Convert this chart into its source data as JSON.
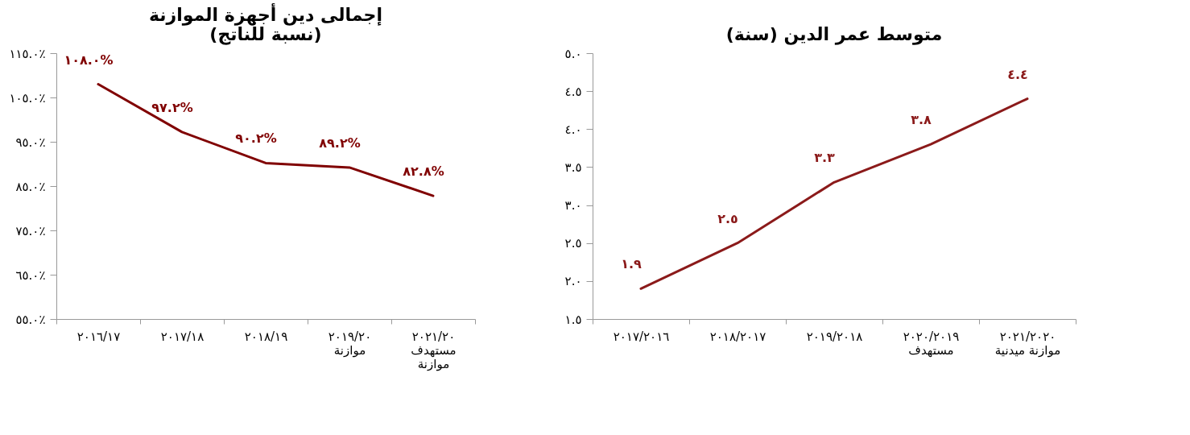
{
  "chart_data": [
    {
      "type": "line",
      "title": "إجمالى دين أجهزة الموازنة\n(نسبة للناتج)",
      "categories": [
        "٢٠١٦/١٧",
        "٢٠١٧/١٨",
        "٢٠١٨/١٩",
        "٢٠١٩/٢٠\nموازنة",
        "٢٠٢١/٢٠\nمستهدف\nموازنة"
      ],
      "series": [
        {
          "color": "#800000",
          "values": [
            108.0,
            97.2,
            90.2,
            89.2,
            82.8
          ],
          "value_labels": [
            "١٠٨.٠%",
            "٩٧.٢%",
            "٩٠.٢%",
            "٨٩.٢%",
            "٨٢.٨%"
          ]
        }
      ],
      "ylim": [
        55,
        115
      ],
      "yticks": [
        {
          "value": 55,
          "label": "٥٥.٠٪"
        },
        {
          "value": 65,
          "label": "٦٥.٠٪"
        },
        {
          "value": 75,
          "label": "٧٥.٠٪"
        },
        {
          "value": 85,
          "label": "٨٥.٠٪"
        },
        {
          "value": 95,
          "label": "٩٥.٠٪"
        },
        {
          "value": 105,
          "label": "١٠٥.٠٪"
        },
        {
          "value": 115,
          "label": "١١٥.٠٪"
        }
      ],
      "grid": false,
      "marker": "none",
      "line_style": "solid"
    },
    {
      "type": "line",
      "title": "متوسط عمر الدين (سنة)",
      "categories": [
        "٢٠١٧/٢٠١٦",
        "٢٠١٨/٢٠١٧",
        "٢٠١٩/٢٠١٨",
        "٢٠٢٠/٢٠١٩\nمستهدف",
        "٢٠٢١/٢٠٢٠\nموازنة ميدنية"
      ],
      "series": [
        {
          "color": "#8b1a1a",
          "values": [
            1.9,
            2.5,
            3.3,
            3.8,
            4.4
          ],
          "value_labels": [
            "١.٩",
            "٢.٥",
            "٣.٣",
            "٣.٨",
            "٤.٤"
          ]
        }
      ],
      "ylim": [
        1.5,
        5.0
      ],
      "yticks": [
        {
          "value": 1.5,
          "label": "١.٥"
        },
        {
          "value": 2.0,
          "label": "٢.٠"
        },
        {
          "value": 2.5,
          "label": "٢.٥"
        },
        {
          "value": 3.0,
          "label": "٣.٠"
        },
        {
          "value": 3.5,
          "label": "٣.٥"
        },
        {
          "value": 4.0,
          "label": "٤.٠"
        },
        {
          "value": 4.5,
          "label": "٤.٥"
        },
        {
          "value": 5.0,
          "label": "٥.٠"
        }
      ],
      "grid": false,
      "marker": "none",
      "line_style": "solid"
    }
  ]
}
